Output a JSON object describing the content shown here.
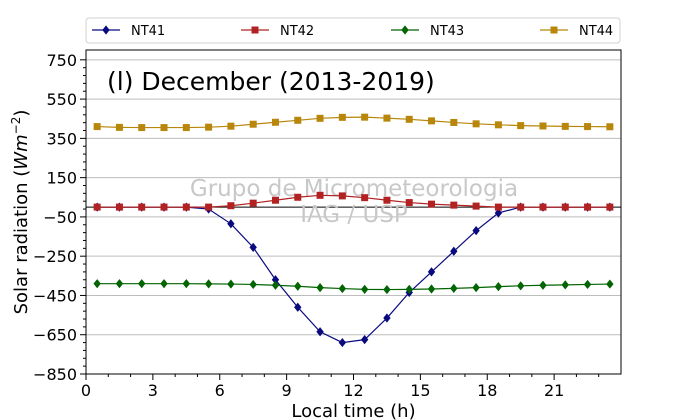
{
  "chart_data": {
    "type": "line",
    "title": "(l) December (2013-2019)",
    "xlabel": "Local time (h)",
    "ylabel_main": "Solar radiation (",
    "ylabel_unit": "Wm",
    "ylabel_exp": "−2",
    "ylabel_close": ")",
    "watermark": [
      "Grupo de Micrometeorologia",
      "IAG / USP"
    ],
    "xlim": [
      0,
      24
    ],
    "ylim": [
      -850,
      800
    ],
    "x_ticks": [
      0,
      3,
      6,
      9,
      12,
      15,
      18,
      21
    ],
    "x_tick_labels": [
      "0",
      "3",
      "6",
      "9",
      "12",
      "15",
      "18",
      "21"
    ],
    "y_ticks": [
      750,
      550,
      350,
      150,
      -50,
      -250,
      -450,
      -650,
      -850
    ],
    "y_tick_labels": [
      "750",
      "550",
      "350",
      "150",
      "−50",
      "−250",
      "−450",
      "−650",
      "−850"
    ],
    "grid": "horizontal",
    "zero_line": 0,
    "legend_placement": "top, outside",
    "x": [
      0.5,
      1.5,
      2.5,
      3.5,
      4.5,
      5.5,
      6.5,
      7.5,
      8.5,
      9.5,
      10.5,
      11.5,
      12.5,
      13.5,
      14.5,
      15.5,
      16.5,
      17.5,
      18.5,
      19.5,
      20.5,
      21.5,
      22.5,
      23.5
    ],
    "series": [
      {
        "name": "NT41",
        "color": "#0a0a80",
        "marker": "diamond",
        "values": [
          0,
          0,
          0,
          0,
          0,
          -10,
          -85,
          -205,
          -370,
          -510,
          -635,
          -690,
          -675,
          -565,
          -435,
          -330,
          -225,
          -120,
          -30,
          0,
          0,
          0,
          0,
          0
        ]
      },
      {
        "name": "NT42",
        "color": "#b22222",
        "marker": "square",
        "values": [
          0,
          0,
          0,
          0,
          0,
          0,
          7,
          20,
          35,
          50,
          60,
          57,
          48,
          35,
          23,
          15,
          10,
          5,
          0,
          0,
          0,
          0,
          0,
          0
        ]
      },
      {
        "name": "NT43",
        "color": "#006400",
        "marker": "diamond",
        "values": [
          -390,
          -390,
          -390,
          -390,
          -390,
          -391,
          -392,
          -394,
          -398,
          -403,
          -410,
          -415,
          -419,
          -420,
          -419,
          -417,
          -414,
          -410,
          -405,
          -401,
          -398,
          -396,
          -394,
          -392
        ]
      },
      {
        "name": "NT44",
        "color": "#b8860b",
        "marker": "square",
        "values": [
          410,
          406,
          405,
          405,
          405,
          407,
          412,
          422,
          432,
          442,
          452,
          457,
          458,
          453,
          447,
          439,
          431,
          424,
          419,
          415,
          413,
          411,
          410,
          409
        ]
      }
    ]
  }
}
